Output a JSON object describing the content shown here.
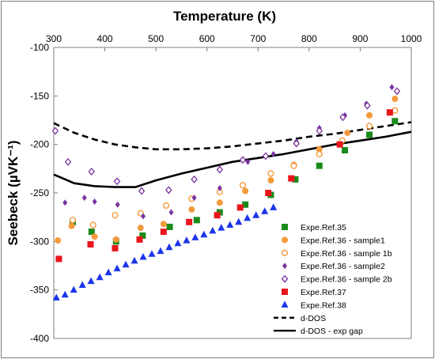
{
  "chart_data": {
    "type": "scatter",
    "title": "",
    "xlabel": "Temperature (K)",
    "ylabel": "Seebeck (µVK⁻¹)",
    "x_axis_position": "top",
    "xlim": [
      300,
      1000
    ],
    "ylim": [
      -400,
      -100
    ],
    "xticks": [
      300,
      400,
      500,
      600,
      700,
      800,
      900,
      1000
    ],
    "yticks": [
      -100,
      -150,
      -200,
      -250,
      -300,
      -350,
      -400
    ],
    "grid": false,
    "legend_position": "bottom-right",
    "series": [
      {
        "name": "Expe.Ref.35",
        "marker": "square-filled",
        "color": "#1a8a1a",
        "x": [
          337,
          374,
          422,
          474,
          527,
          580,
          625,
          675,
          725,
          773,
          820,
          870,
          918,
          968
        ],
        "y": [
          -280,
          -290,
          -300,
          -294,
          -285,
          -278,
          -270,
          -262,
          -252,
          -236,
          -222,
          -206,
          -190,
          -176
        ]
      },
      {
        "name": "Expe.Ref.36 - sample1",
        "marker": "circle-filled",
        "color": "#f39a3c",
        "x": [
          308,
          335,
          380,
          422,
          470,
          515,
          570,
          625,
          675,
          725,
          770,
          820,
          875,
          918,
          968
        ],
        "y": [
          -299,
          -284,
          -295,
          -298,
          -286,
          -282,
          -267,
          -260,
          -248,
          -237,
          -221,
          -205,
          -188,
          -170,
          -153
        ]
      },
      {
        "name": "Expe.Ref.36 - sample 1b",
        "marker": "circle-open",
        "color": "#f39a3c",
        "x": [
          337,
          377,
          420,
          470,
          520,
          570,
          625,
          670,
          725,
          770,
          820,
          865,
          918,
          968
        ],
        "y": [
          -278,
          -283,
          -273,
          -271,
          -263,
          -256,
          -249,
          -242,
          -230,
          -222,
          -210,
          -196,
          -181,
          -165
        ]
      },
      {
        "name": "Expe.Ref.36 - sample2",
        "marker": "diamond-filled",
        "color": "#7a35a0",
        "x": [
          322,
          360,
          380,
          425,
          475,
          530,
          575,
          625,
          680,
          730,
          775,
          820,
          870,
          912,
          962
        ],
        "y": [
          -260,
          -255,
          -259,
          -262,
          -274,
          -270,
          -255,
          -245,
          -218,
          -210,
          -197,
          -183,
          -170,
          -158,
          -141
        ]
      },
      {
        "name": "Expe.Ref.36 - sample 2b",
        "marker": "diamond-open",
        "color": "#7a35a0",
        "x": [
          303,
          328,
          374,
          424,
          472,
          525,
          575,
          625,
          670,
          715,
          775,
          820,
          866,
          914,
          972
        ],
        "y": [
          -186,
          -218,
          -228,
          -238,
          -248,
          -247,
          -236,
          -226,
          -216,
          -212,
          -199,
          -186,
          -172,
          -160,
          -145
        ]
      },
      {
        "name": "Expe.Ref.37",
        "marker": "square-filled",
        "color": "#e8161c",
        "x": [
          310,
          372,
          420,
          468,
          515,
          565,
          620,
          665,
          720,
          765,
          860,
          958
        ],
        "y": [
          -318,
          -303,
          -307,
          -298,
          -290,
          -280,
          -273,
          -265,
          -250,
          -235,
          -200,
          -167
        ]
      },
      {
        "name": "Expe.Ref.38",
        "marker": "triangle-filled",
        "color": "#1a35ea",
        "x": [
          305,
          322,
          339,
          356,
          373,
          390,
          407,
          424,
          441,
          458,
          475,
          492,
          509,
          526,
          543,
          560,
          577,
          594,
          611,
          628,
          645,
          662,
          679,
          696,
          713,
          730
        ],
        "y": [
          -358,
          -355,
          -350,
          -345,
          -341,
          -337,
          -332,
          -328,
          -324,
          -320,
          -316,
          -313,
          -310,
          -306,
          -302,
          -299,
          -296,
          -293,
          -289,
          -286,
          -283,
          -280,
          -276,
          -273,
          -269,
          -265
        ]
      },
      {
        "name": "d-DOS",
        "type": "line",
        "style": "dashed",
        "color": "#000000",
        "x": [
          300,
          340,
          380,
          420,
          460,
          500,
          550,
          600,
          650,
          700,
          750,
          800,
          850,
          900,
          950,
          1000
        ],
        "y": [
          -178,
          -188,
          -195,
          -200,
          -203,
          -205,
          -205,
          -204,
          -202,
          -199,
          -196,
          -192,
          -189,
          -185,
          -181,
          -177
        ]
      },
      {
        "name": "d-DOS - exp gap",
        "type": "line",
        "style": "solid",
        "color": "#000000",
        "x": [
          300,
          340,
          380,
          420,
          460,
          500,
          550,
          600,
          650,
          700,
          750,
          800,
          850,
          900,
          950,
          1000
        ],
        "y": [
          -231,
          -240,
          -243,
          -244,
          -244,
          -237,
          -230,
          -224,
          -218,
          -214,
          -210,
          -205,
          -200,
          -196,
          -192,
          -187
        ]
      }
    ]
  }
}
